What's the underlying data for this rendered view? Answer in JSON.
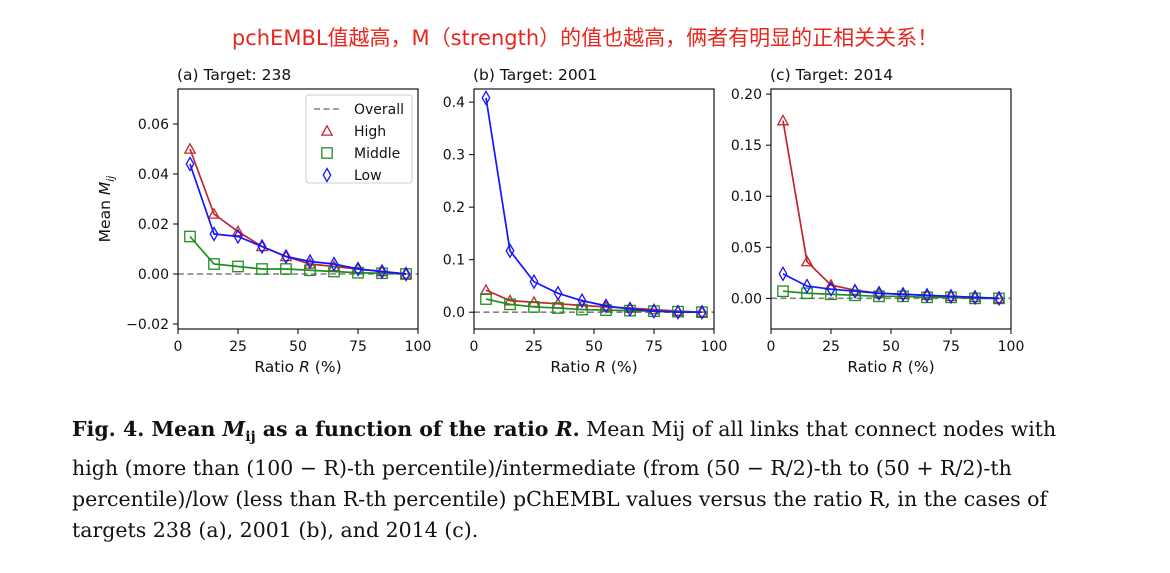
{
  "headline": "pchEMBL值越高，M（strength）的值也越高，俩者有明显的正相关关系！",
  "colors": {
    "overall": "#808080",
    "high": "#c0262d",
    "middle": "#1f8e1f",
    "low": "#1414ff"
  },
  "chart_data": [
    {
      "type": "line",
      "title": "(a) Target: 238",
      "xlabel": "Ratio R (%)",
      "ylabel": "Mean M_ij",
      "xlim": [
        0,
        100
      ],
      "ylim": [
        -0.022,
        0.074
      ],
      "xticks": [
        0,
        25,
        50,
        75,
        100
      ],
      "xtick_labels": [
        "0",
        "25",
        "50",
        "75",
        "100"
      ],
      "yticks": [
        -0.02,
        0.0,
        0.02,
        0.04,
        0.06
      ],
      "ytick_labels": [
        "−0.02",
        "0.00",
        "0.02",
        "0.04",
        "0.06"
      ],
      "legend": {
        "placement": "top-right",
        "entries": [
          "Overall",
          "High",
          "Middle",
          "Low"
        ]
      },
      "overall": 0.0,
      "x": [
        5,
        15,
        25,
        35,
        45,
        55,
        65,
        75,
        85,
        95
      ],
      "series": [
        {
          "name": "High",
          "marker": "triangle",
          "values": [
            0.05,
            0.024,
            0.017,
            0.011,
            0.007,
            0.004,
            0.003,
            0.002,
            0.001,
            0.0
          ]
        },
        {
          "name": "Middle",
          "marker": "square",
          "values": [
            0.015,
            0.004,
            0.003,
            0.002,
            0.002,
            0.0015,
            0.001,
            0.0005,
            0.0003,
            0.0
          ]
        },
        {
          "name": "Low",
          "marker": "diamond",
          "values": [
            0.044,
            0.016,
            0.015,
            0.011,
            0.007,
            0.005,
            0.004,
            0.002,
            0.001,
            0.0
          ]
        }
      ]
    },
    {
      "type": "line",
      "title": "(b) Target: 2001",
      "xlabel": "Ratio R (%)",
      "ylabel": "",
      "xlim": [
        0,
        100
      ],
      "ylim": [
        -0.032,
        0.425
      ],
      "xticks": [
        0,
        25,
        50,
        75,
        100
      ],
      "xtick_labels": [
        "0",
        "25",
        "50",
        "75",
        "100"
      ],
      "yticks": [
        0.0,
        0.1,
        0.2,
        0.3,
        0.4
      ],
      "ytick_labels": [
        "0.0",
        "0.1",
        "0.2",
        "0.3",
        "0.4"
      ],
      "overall": 0.0,
      "x": [
        5,
        15,
        25,
        35,
        45,
        55,
        65,
        75,
        85,
        95
      ],
      "series": [
        {
          "name": "High",
          "marker": "triangle",
          "values": [
            0.042,
            0.022,
            0.019,
            0.016,
            0.013,
            0.01,
            0.008,
            0.005,
            0.002,
            0.0
          ]
        },
        {
          "name": "Middle",
          "marker": "square",
          "values": [
            0.025,
            0.015,
            0.01,
            0.008,
            0.005,
            0.004,
            0.003,
            0.002,
            0.001,
            0.0
          ]
        },
        {
          "name": "Low",
          "marker": "diamond",
          "values": [
            0.408,
            0.117,
            0.058,
            0.036,
            0.022,
            0.012,
            0.006,
            0.002,
            0.0,
            0.0
          ]
        }
      ]
    },
    {
      "type": "line",
      "title": "(c) Target: 2014",
      "xlabel": "Ratio R (%)",
      "ylabel": "",
      "xlim": [
        0,
        100
      ],
      "ylim": [
        -0.03,
        0.205
      ],
      "xticks": [
        0,
        25,
        50,
        75,
        100
      ],
      "xtick_labels": [
        "0",
        "25",
        "50",
        "75",
        "100"
      ],
      "yticks": [
        0.0,
        0.05,
        0.1,
        0.15,
        0.2
      ],
      "ytick_labels": [
        "0.00",
        "0.05",
        "0.10",
        "0.15",
        "0.20"
      ],
      "overall": 0.0,
      "x": [
        5,
        15,
        25,
        35,
        45,
        55,
        65,
        75,
        85,
        95
      ],
      "series": [
        {
          "name": "High",
          "marker": "triangle",
          "values": [
            0.174,
            0.036,
            0.013,
            0.008,
            0.005,
            0.004,
            0.003,
            0.002,
            0.001,
            0.0
          ]
        },
        {
          "name": "Middle",
          "marker": "square",
          "values": [
            0.007,
            0.005,
            0.004,
            0.003,
            0.002,
            0.002,
            0.001,
            0.001,
            0.0,
            0.0
          ]
        },
        {
          "name": "Low",
          "marker": "diamond",
          "values": [
            0.024,
            0.012,
            0.009,
            0.007,
            0.005,
            0.004,
            0.003,
            0.002,
            0.001,
            0.0
          ]
        }
      ]
    }
  ],
  "caption": {
    "lead": "Fig. 4. Mean ",
    "lead_var": "M",
    "lead_sub": "ij",
    "lead_mid": " as a function of the ratio ",
    "lead_var2": "R",
    "lead_end": ".",
    "body": " Mean Mij of all links that connect nodes with high (more than (100 − R)-th percentile)/intermediate (from (50 − R/2)-th to (50 + R/2)-th percentile)/low (less than R-th percentile) pChEMBL values versus the ratio R, in the cases of targets 238 (a), 2001 (b), and 2014 (c)."
  }
}
